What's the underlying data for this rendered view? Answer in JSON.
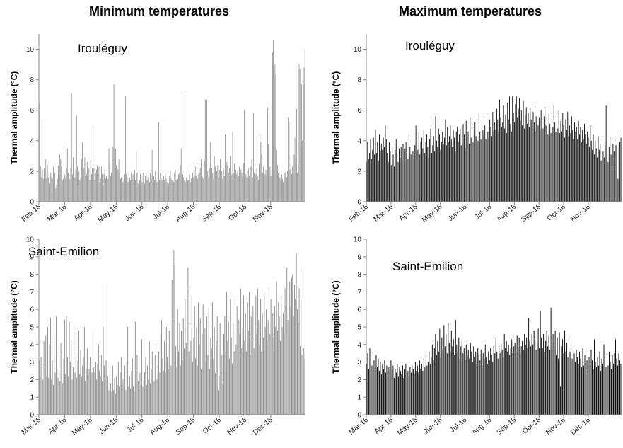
{
  "column_titles": {
    "left": "Minimum temperatures",
    "right": "Maximum temperatures"
  },
  "colors": {
    "min_bars": "#808080",
    "max_bars": "#000000"
  },
  "chart_data": [
    {
      "id": "irouleguy-min",
      "type": "bar",
      "column": "Minimum temperatures",
      "site": "Irouléguy",
      "ylabel": "Thermal amplitude (°C)",
      "xlabel": "",
      "ylim": [
        0,
        11
      ],
      "yticks": [
        0,
        2,
        4,
        6,
        8,
        10
      ],
      "xticks": [
        "Feb-16",
        "Mar-16",
        "Apr-16",
        "May-16",
        "Jun-16",
        "Jul-16",
        "Aug-16",
        "Sep-16",
        "Oct-16",
        "Nov-16"
      ],
      "bar_color": "#808080",
      "grid": false,
      "values": [
        6.5,
        5.4,
        2.3,
        1.6,
        2.1,
        1.5,
        2.2,
        1.8,
        2.8,
        1.5,
        2.4,
        1.6,
        1.2,
        2.6,
        1.9,
        1.6,
        1.5,
        2.3,
        1.4,
        1.9,
        0.9,
        1.1,
        1.5,
        2.4,
        2.0,
        3.1,
        2.8,
        2.3,
        1.4,
        1.5,
        3.6,
        1.8,
        1.6,
        2.2,
        3.5,
        1.9,
        1.6,
        1.5,
        2.2,
        7.1,
        1.8,
        2.9,
        1.9,
        1.6,
        2.1,
        5.7,
        2.3,
        1.2,
        2.0,
        1.4,
        1.6,
        2.8,
        3.9,
        3.1,
        2.2,
        2.9,
        1.7,
        1.8,
        2.6,
        1.9,
        2.2,
        1.4,
        2.7,
        1.8,
        2.2,
        4.9,
        2.2,
        1.4,
        1.9,
        2.1,
        2.4,
        1.8,
        2.3,
        1.3,
        1.5,
        2.3,
        1.8,
        1.1,
        1.8,
        2.1,
        1.5,
        1.7,
        1.4,
        1.5,
        3.5,
        2.7,
        1.7,
        1.9,
        2.8,
        3.6,
        7.7,
        3.5,
        3.5,
        2.4,
        2.2,
        2.1,
        2.8,
        1.9,
        1.5,
        1.6,
        1.7,
        1.3,
        1.4,
        1.8,
        6.9,
        1.8,
        1.6,
        1.3,
        2.0,
        1.6,
        1.4,
        1.9,
        1.5,
        1.8,
        1.2,
        2.1,
        1.4,
        3.3,
        1.9,
        1.2,
        1.6,
        1.4,
        1.8,
        1.7,
        1.3,
        1.9,
        1.5,
        1.2,
        1.7,
        1.9,
        1.4,
        1.6,
        1.8,
        1.3,
        1.9,
        1.5,
        3.4,
        2.0,
        1.7,
        1.4,
        2.0,
        1.4,
        1.3,
        1.7,
        5.2,
        1.4,
        1.9,
        1.6,
        1.4,
        1.8,
        1.7,
        1.4,
        1.9,
        1.5,
        1.3,
        1.8,
        1.2,
        1.7,
        2.0,
        1.5,
        1.4,
        1.6,
        1.3,
        1.9,
        2.1,
        1.4,
        1.7,
        1.5,
        1.8,
        1.9,
        2.4,
        3.5,
        7.0,
        1.8,
        1.6,
        1.4,
        1.3,
        1.6,
        1.9,
        1.4,
        1.4,
        1.8,
        1.3,
        1.5,
        2.2,
        1.9,
        1.6,
        1.7,
        2.3,
        1.7,
        2.5,
        1.5,
        1.8,
        1.9,
        2.2,
        2.8,
        3.0,
        1.6,
        1.5,
        2.7,
        6.7,
        1.9,
        6.7,
        2.0,
        1.6,
        2.2,
        3.9,
        3.5,
        2.2,
        1.9,
        1.5,
        3.0,
        2.3,
        1.8,
        2.0,
        2.4,
        1.6,
        2.1,
        2.8,
        1.8,
        2.0,
        1.5,
        2.2,
        1.7,
        4.4,
        1.5,
        2.6,
        2.4,
        1.9,
        2.2,
        3.0,
        1.6,
        1.8,
        4.6,
        1.9,
        2.5,
        1.4,
        2.1,
        1.8,
        2.0,
        1.7,
        2.3,
        1.6,
        2.1,
        1.9,
        1.7,
        2.5,
        6.0,
        2.1,
        1.8,
        1.6,
        2.0,
        2.2,
        1.7,
        1.6,
        2.3,
        2.8,
        1.6,
        5.8,
        1.9,
        2.1,
        1.8,
        2.2,
        1.7,
        1.4,
        2.5,
        4.4,
        3.9,
        3.1,
        1.9,
        2.3,
        2.6,
        1.8,
        2.1,
        1.7,
        6.2,
        3.8,
        5.9,
        2.3,
        1.7,
        2.1,
        9.8,
        10.6,
        8.2,
        9.0,
        8.4,
        3.4,
        2.4,
        1.9,
        2.0,
        1.6,
        1.4,
        1.8,
        1.5,
        1.3,
        1.7,
        1.9,
        2.1,
        1.6,
        2.0,
        5.5,
        5.2,
        2.1,
        2.9,
        1.8,
        2.3,
        1.9,
        3.1,
        4.2,
        2.6,
        6.1,
        1.9,
        2.3,
        9.0,
        8.7,
        3.6,
        7.7,
        4.0,
        7.7,
        8.8,
        10.0
      ]
    },
    {
      "id": "irouleguy-max",
      "type": "bar",
      "column": "Maximum temperatures",
      "site": "Irouléguy",
      "ylabel": "Thermal amplitude (°C)",
      "xlabel": "",
      "ylim": [
        0,
        11
      ],
      "yticks": [
        0,
        2,
        4,
        6,
        8,
        10
      ],
      "xticks": [
        "Feb-16",
        "Mar-16",
        "Apr-16",
        "May-16",
        "Jun-16",
        "Jul-16",
        "Aug-16",
        "Sep-16",
        "Oct-16",
        "Nov-16"
      ],
      "bar_color": "#000000",
      "grid": false,
      "values": [
        2.6,
        3.9,
        2.8,
        3.2,
        4.1,
        2.8,
        3.4,
        4.2,
        3.1,
        4.7,
        3.2,
        3.9,
        2.7,
        4.4,
        3.3,
        3.8,
        3.4,
        4.2,
        3.6,
        5.0,
        4.1,
        3.2,
        2.6,
        3.9,
        3.3,
        2.4,
        3.6,
        3.1,
        2.3,
        3.4,
        4.1,
        3.2,
        2.6,
        3.5,
        2.9,
        3.6,
        3.0,
        3.8,
        2.7,
        3.5,
        3.9,
        3.3,
        2.8,
        4.4,
        3.6,
        3.1,
        4.0,
        3.3,
        2.9,
        3.7,
        5.0,
        4.3,
        3.4,
        4.6,
        3.1,
        3.9,
        4.2,
        3.5,
        4.7,
        3.2,
        3.9,
        4.4,
        3.6,
        2.9,
        4.1,
        4.8,
        3.2,
        3.7,
        4.3,
        3.3,
        5.6,
        4.0,
        3.6,
        4.8,
        4.4,
        3.4,
        3.9,
        4.6,
        3.8,
        4.2,
        5.4,
        3.7,
        4.9,
        3.9,
        4.3,
        5.0,
        4.1,
        3.6,
        4.7,
        4.2,
        3.3,
        4.6,
        4.9,
        3.9,
        4.4,
        4.8,
        3.7,
        4.0,
        5.1,
        4.4,
        3.5,
        5.3,
        4.1,
        4.6,
        3.8,
        5.5,
        4.2,
        4.7,
        3.9,
        4.9,
        5.2,
        4.3,
        5.1,
        4.0,
        5.8,
        4.6,
        4.1,
        5.5,
        4.7,
        4.4,
        5.0,
        4.1,
        5.6,
        4.6,
        4.2,
        5.4,
        4.9,
        4.3,
        5.9,
        4.6,
        5.2,
        4.7,
        6.1,
        5.4,
        4.6,
        6.7,
        5.5,
        4.9,
        5.2,
        6.3,
        4.8,
        5.7,
        4.5,
        6.5,
        5.4,
        6.9,
        5.1,
        4.6,
        6.9,
        5.8,
        5.2,
        6.4,
        6.9,
        5.5,
        6.1,
        6.8,
        5.3,
        6.0,
        5.0,
        6.6,
        4.8,
        5.7,
        6.2,
        5.1,
        5.8,
        4.9,
        6.1,
        5.4,
        4.8,
        5.9,
        5.2,
        4.6,
        5.6,
        6.4,
        5.0,
        5.5,
        4.7,
        6.0,
        5.3,
        4.8,
        5.6,
        6.2,
        5.0,
        5.4,
        4.4,
        5.8,
        5.1,
        4.5,
        5.5,
        4.9,
        6.3,
        5.2,
        4.6,
        5.5,
        4.8,
        6.0,
        4.5,
        5.3,
        4.6,
        5.8,
        5.0,
        4.2,
        5.4,
        4.7,
        5.9,
        4.3,
        5.0,
        4.5,
        5.6,
        4.7,
        4.1,
        5.2,
        4.6,
        4.9,
        4.1,
        5.3,
        4.4,
        4.9,
        3.9,
        4.7,
        4.1,
        5.1,
        4.4,
        3.8,
        4.6,
        4.2,
        3.6,
        5.0,
        4.0,
        3.4,
        4.4,
        3.1,
        4.0,
        3.5,
        2.9,
        4.3,
        3.4,
        3.8,
        2.7,
        4.0,
        3.3,
        2.9,
        3.7,
        6.3,
        3.2,
        2.6,
        3.6,
        4.3,
        3.1,
        2.4,
        3.8,
        3.3,
        4.1,
        3.7,
        4.4,
        1.5,
        3.6,
        3.9,
        4.2
      ]
    },
    {
      "id": "saint-emilion-min",
      "type": "bar",
      "column": "Minimum temperatures",
      "site": "Saint-Emilion",
      "ylabel": "Thermal amplitude (°C)",
      "xlabel": "",
      "ylim": [
        0,
        10
      ],
      "yticks": [
        0,
        1,
        2,
        3,
        4,
        5,
        6,
        7,
        8,
        9,
        10
      ],
      "xticks": [
        "Mar-16",
        "Apr-16",
        "May-16",
        "Jun-16",
        "Jul-16",
        "Aug-16",
        "Sep-16",
        "Oct-16",
        "Nov-16",
        "Dec-16"
      ],
      "bar_color": "#808080",
      "grid": false,
      "values": [
        3.1,
        2.2,
        3.3,
        2.7,
        2.0,
        4.2,
        2.3,
        4.5,
        2.2,
        5.0,
        2.1,
        4.0,
        5.5,
        2.0,
        3.1,
        1.7,
        4.6,
        2.4,
        5.6,
        2.6,
        2.1,
        3.6,
        1.9,
        4.1,
        2.5,
        1.8,
        3.2,
        5.4,
        2.3,
        5.6,
        3.3,
        2.2,
        5.3,
        3.0,
        4.2,
        2.0,
        2.7,
        5.0,
        2.4,
        3.4,
        2.1,
        3.1,
        4.8,
        2.3,
        3.7,
        2.2,
        2.8,
        3.3,
        5.0,
        1.9,
        2.6,
        3.8,
        2.2,
        2.6,
        3.3,
        2.6,
        2.4,
        4.9,
        2.7,
        2.4,
        3.0,
        2.0,
        2.9,
        4.0,
        2.5,
        2.2,
        3.4,
        1.9,
        5.0,
        2.8,
        2.1,
        3.1,
        7.5,
        2.2,
        1.4,
        2.3,
        1.8,
        1.3,
        2.8,
        1.4,
        2.1,
        1.2,
        2.2,
        1.7,
        3.0,
        1.6,
        2.4,
        3.3,
        1.5,
        2.0,
        1.6,
        2.8,
        1.4,
        3.0,
        5.0,
        1.6,
        2.2,
        1.5,
        2.5,
        3.2,
        1.6,
        1.3,
        5.3,
        1.8,
        3.4,
        1.9,
        1.4,
        2.4,
        1.7,
        4.3,
        1.6,
        2.0,
        2.4,
        3.3,
        1.7,
        2.8,
        2.0,
        4.2,
        1.8,
        2.6,
        3.6,
        2.2,
        1.9,
        3.4,
        4.1,
        2.0,
        2.8,
        3.6,
        2.4,
        4.6,
        5.4,
        3.2,
        2.5,
        4.2,
        2.4,
        5.0,
        3.3,
        2.6,
        4.8,
        6.2,
        2.8,
        7.7,
        5.4,
        9.4,
        8.5,
        3.9,
        2.7,
        6.0,
        3.6,
        5.2,
        2.8,
        4.8,
        3.1,
        5.5,
        3.8,
        6.6,
        4.1,
        7.3,
        8.4,
        3.6,
        5.2,
        4.2,
        6.8,
        3.0,
        4.4,
        6.2,
        3.2,
        5.0,
        2.8,
        6.4,
        4.0,
        5.5,
        2.6,
        4.6,
        6.3,
        3.3,
        4.9,
        3.0,
        5.6,
        3.4,
        6.1,
        2.6,
        4.4,
        3.8,
        6.4,
        3.2,
        5.0,
        2.4,
        4.2,
        5.6,
        1.4,
        2.2,
        5.2,
        2.6,
        3.4,
        1.8,
        4.6,
        5.6,
        3.6,
        7.0,
        4.2,
        5.3,
        3.2,
        6.6,
        4.4,
        2.9,
        5.2,
        3.6,
        6.6,
        4.0,
        6.2,
        3.4,
        5.4,
        4.6,
        7.2,
        3.8,
        5.0,
        6.8,
        4.2,
        5.8,
        3.6,
        6.4,
        4.8,
        7.0,
        3.4,
        5.6,
        4.4,
        6.2,
        3.8,
        5.2,
        6.8,
        4.6,
        7.2,
        5.4,
        4.0,
        6.6,
        3.6,
        5.8,
        4.4,
        7.0,
        5.0,
        6.0,
        4.2,
        5.4,
        7.2,
        4.6,
        6.6,
        3.8,
        5.8,
        4.4,
        6.2,
        5.0,
        7.6,
        4.8,
        6.4,
        5.6,
        4.2,
        6.8,
        5.0,
        5.8,
        4.6,
        7.2,
        6.0,
        8.4,
        5.4,
        7.0,
        7.6,
        6.2,
        7.8,
        8.0,
        5.6,
        7.4,
        6.6,
        9.2,
        6.0,
        5.2,
        7.2,
        3.9,
        6.6,
        3.4,
        8.2,
        3.8,
        3.2
      ]
    },
    {
      "id": "saint-emilion-max",
      "type": "bar",
      "column": "Maximum temperatures",
      "site": "Saint-Emilion",
      "ylabel": "Thermal amplitude (°C)",
      "xlabel": "",
      "ylim": [
        0,
        10
      ],
      "yticks": [
        0,
        1,
        2,
        3,
        4,
        5,
        6,
        7,
        8,
        9,
        10
      ],
      "xticks": [
        "Mar-16",
        "Apr-16",
        "May-16",
        "Jun-16",
        "Jul-16",
        "Aug-16",
        "Sep-16",
        "Oct-16",
        "Nov-16",
        "Dec-16"
      ],
      "bar_color": "#000000",
      "grid": false,
      "values": [
        2.9,
        3.5,
        2.6,
        3.8,
        3.3,
        2.8,
        3.6,
        3.1,
        2.4,
        3.4,
        2.7,
        3.2,
        2.5,
        3.0,
        2.3,
        2.9,
        2.6,
        3.1,
        2.4,
        2.8,
        2.2,
        2.7,
        2.5,
        3.1,
        2.3,
        2.8,
        2.1,
        2.6,
        2.4,
        2.9,
        2.2,
        2.7,
        2.5,
        2.3,
        2.8,
        2.1,
        2.6,
        2.9,
        2.3,
        2.5,
        2.2,
        2.7,
        2.4,
        2.8,
        2.6,
        2.3,
        3.0,
        2.5,
        2.8,
        2.4,
        3.1,
        2.6,
        2.9,
        2.5,
        3.2,
        2.7,
        3.4,
        2.8,
        3.0,
        3.6,
        2.9,
        3.3,
        4.0,
        3.1,
        3.8,
        4.6,
        3.4,
        4.2,
        3.6,
        4.9,
        3.3,
        4.4,
        3.7,
        5.1,
        3.9,
        4.6,
        3.5,
        5.2,
        4.1,
        3.6,
        4.8,
        3.9,
        4.3,
        3.4,
        5.4,
        4.0,
        3.6,
        4.4,
        3.2,
        3.9,
        4.2,
        3.5,
        3.8,
        3.1,
        4.0,
        3.4,
        3.7,
        3.2,
        4.1,
        3.6,
        3.0,
        3.9,
        3.3,
        3.6,
        2.9,
        3.8,
        3.4,
        3.1,
        3.7,
        2.8,
        3.5,
        3.2,
        4.0,
        3.3,
        2.9,
        3.6,
        3.1,
        3.8,
        3.4,
        3.0,
        3.9,
        3.5,
        4.4,
        3.6,
        3.2,
        3.9,
        3.5,
        4.1,
        3.7,
        3.3,
        4.6,
        3.8,
        4.2,
        3.6,
        4.0,
        3.4,
        3.8,
        4.3,
        3.5,
        3.9,
        4.1,
        3.6,
        4.5,
        3.8,
        4.4,
        3.5,
        3.9,
        4.2,
        3.7,
        4.6,
        4.0,
        4.4,
        3.8,
        5.5,
        4.2,
        3.9,
        4.6,
        4.0,
        4.8,
        4.3,
        3.7,
        4.1,
        4.9,
        3.8,
        5.9,
        4.4,
        3.8,
        4.6,
        3.6,
        4.2,
        4.8,
        3.9,
        4.5,
        3.7,
        6.1,
        4.0,
        4.6,
        3.8,
        4.8,
        3.4,
        4.4,
        3.2,
        4.7,
        1.6,
        3.9,
        4.3,
        3.5,
        4.8,
        3.6,
        4.1,
        3.3,
        3.9,
        3.6,
        4.4,
        3.2,
        3.8,
        3.5,
        3.0,
        3.7,
        3.3,
        2.9,
        3.6,
        3.2,
        2.7,
        3.8,
        2.8,
        3.4,
        2.6,
        3.1,
        2.4,
        3.3,
        2.9,
        3.7,
        3.1,
        2.6,
        4.3,
        3.0,
        2.7,
        3.3,
        2.8,
        3.6,
        2.5,
        3.2,
        2.9,
        4.0,
        3.1,
        2.7,
        3.4,
        2.8,
        3.6,
        3.0,
        2.6,
        3.4,
        2.9,
        3.5,
        4.3,
        3.2,
        2.8,
        3.5,
        3.1,
        2.9
      ]
    }
  ]
}
